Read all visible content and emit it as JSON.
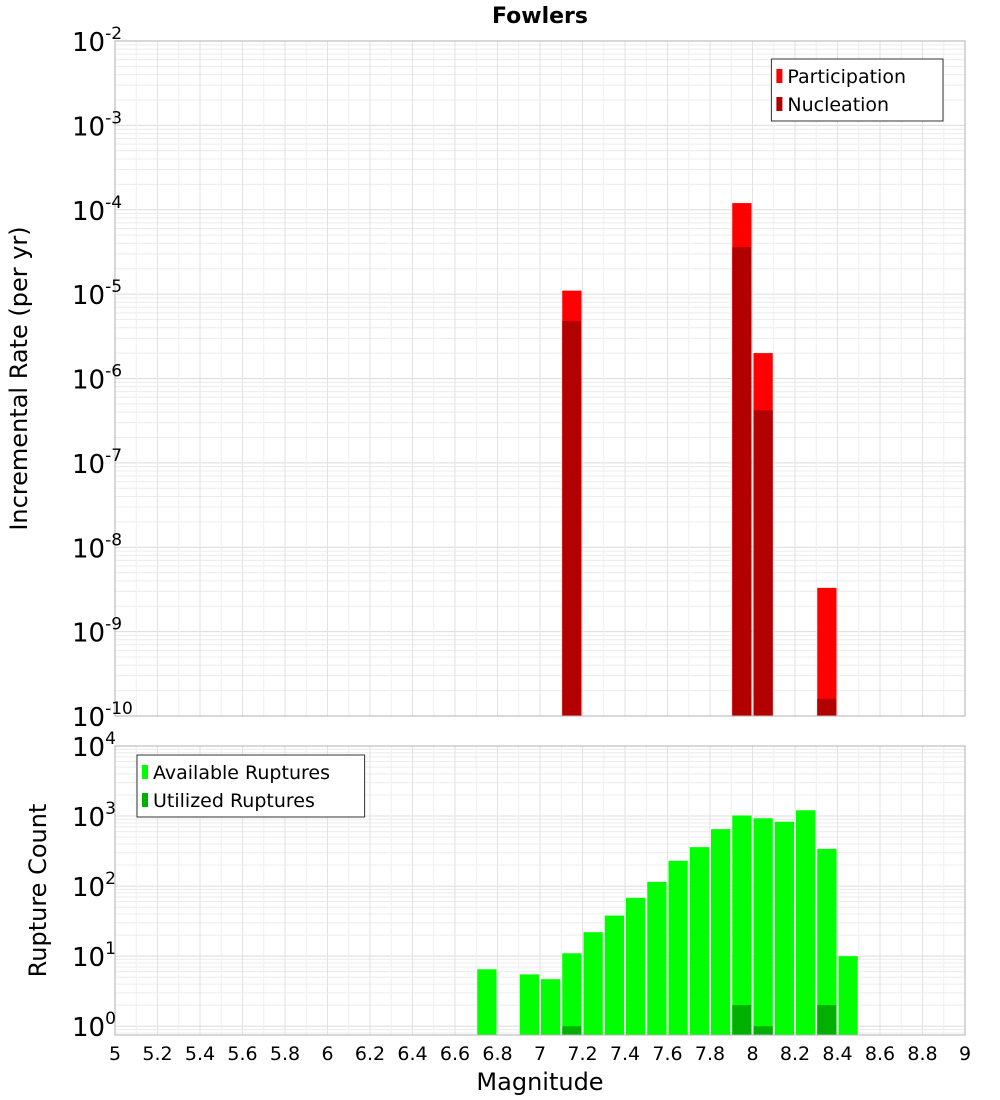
{
  "chart_data": [
    {
      "type": "bar",
      "title": "Fowlers",
      "xlabel": "",
      "ylabel": "Incremental Rate (per yr)",
      "yscale": "log",
      "ylim": [
        1e-10,
        0.01
      ],
      "xlim": [
        5,
        9
      ],
      "bin_width": 0.1,
      "ytick_exponents": [
        "-2",
        "-3",
        "-4",
        "-5",
        "-6",
        "-7",
        "-8",
        "-9",
        "-10"
      ],
      "ytick_base": "10",
      "grid": true,
      "legend_position": "top-right",
      "series": [
        {
          "name": "Participation",
          "color": "#ff0000",
          "x": [
            7.15,
            7.95,
            8.05,
            8.35
          ],
          "values": [
            1.1e-05,
            0.00012,
            2e-06,
            3.3e-09
          ]
        },
        {
          "name": "Nucleation",
          "color": "#b20000",
          "x": [
            7.15,
            7.95,
            8.05,
            8.35
          ],
          "values": [
            4.8e-06,
            3.6e-05,
            4.2e-07,
            1.6e-10
          ]
        }
      ]
    },
    {
      "type": "bar",
      "title": "",
      "xlabel": "Magnitude",
      "ylabel": "Rupture Count",
      "yscale": "log",
      "ylim": [
        0.75,
        10000
      ],
      "xlim": [
        5,
        9
      ],
      "bin_width": 0.1,
      "ytick_exponents": [
        "4",
        "3",
        "2",
        "1",
        "0"
      ],
      "ytick_base": "10",
      "xticks": [
        "5",
        "5.2",
        "5.4",
        "5.6",
        "5.8",
        "6",
        "6.2",
        "6.4",
        "6.6",
        "6.8",
        "7",
        "7.2",
        "7.4",
        "7.6",
        "7.8",
        "8",
        "8.2",
        "8.4",
        "8.6",
        "8.8",
        "9"
      ],
      "grid": true,
      "legend_position": "top-left",
      "series": [
        {
          "name": "Available Ruptures",
          "color": "#00ff00",
          "x": [
            6.75,
            6.95,
            7.05,
            7.15,
            7.25,
            7.35,
            7.45,
            7.55,
            7.65,
            7.75,
            7.85,
            7.95,
            8.05,
            8.15,
            8.25,
            8.35,
            8.45
          ],
          "values": [
            6.5,
            5.5,
            4.7,
            11,
            22,
            38,
            68,
            115,
            230,
            360,
            650,
            1020,
            930,
            830,
            1210,
            340,
            10
          ]
        },
        {
          "name": "Utilized Ruptures",
          "color": "#00b000",
          "x": [
            7.15,
            7.95,
            8.05,
            8.35
          ],
          "values": [
            1,
            2,
            1,
            2
          ]
        }
      ]
    }
  ]
}
